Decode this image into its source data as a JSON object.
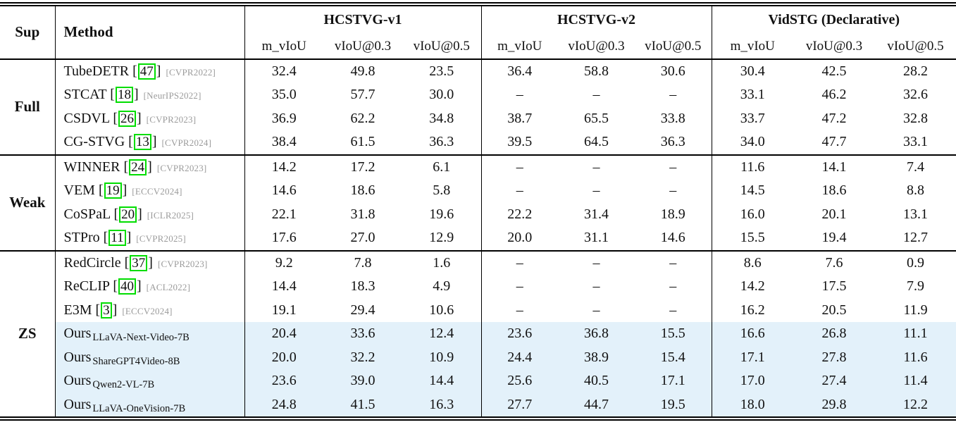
{
  "table": {
    "headers": {
      "sup": "Sup",
      "method": "Method"
    },
    "groups": [
      {
        "label": "HCSTVG-v1",
        "subcols": [
          "m_vIoU",
          "vIoU@0.3",
          "vIoU@0.5"
        ]
      },
      {
        "label": "HCSTVG-v2",
        "subcols": [
          "m_vIoU",
          "vIoU@0.3",
          "vIoU@0.5"
        ]
      },
      {
        "label": "VidSTG (Declarative)",
        "subcols": [
          "m_vIoU",
          "vIoU@0.3",
          "vIoU@0.5"
        ]
      }
    ],
    "sections": [
      {
        "sup": "Full",
        "rows": [
          {
            "method": "TubeDETR",
            "cite": "47",
            "venue": "[CVPR2022]",
            "highlight": false,
            "values": [
              "32.4",
              "49.8",
              "23.5",
              "36.4",
              "58.8",
              "30.6",
              "30.4",
              "42.5",
              "28.2"
            ]
          },
          {
            "method": "STCAT",
            "cite": "18",
            "venue": "[NeurIPS2022]",
            "highlight": false,
            "values": [
              "35.0",
              "57.7",
              "30.0",
              "–",
              "–",
              "–",
              "33.1",
              "46.2",
              "32.6"
            ]
          },
          {
            "method": "CSDVL",
            "cite": "26",
            "venue": "[CVPR2023]",
            "highlight": false,
            "values": [
              "36.9",
              "62.2",
              "34.8",
              "38.7",
              "65.5",
              "33.8",
              "33.7",
              "47.2",
              "32.8"
            ]
          },
          {
            "method": "CG-STVG",
            "cite": "13",
            "venue": "[CVPR2024]",
            "highlight": false,
            "values": [
              "38.4",
              "61.5",
              "36.3",
              "39.5",
              "64.5",
              "36.3",
              "34.0",
              "47.7",
              "33.1"
            ]
          }
        ]
      },
      {
        "sup": "Weak",
        "rows": [
          {
            "method": "WINNER",
            "cite": "24",
            "venue": "[CVPR2023]",
            "highlight": false,
            "values": [
              "14.2",
              "17.2",
              "6.1",
              "–",
              "–",
              "–",
              "11.6",
              "14.1",
              "7.4"
            ]
          },
          {
            "method": "VEM",
            "cite": "19",
            "venue": "[ECCV2024]",
            "highlight": false,
            "values": [
              "14.6",
              "18.6",
              "5.8",
              "–",
              "–",
              "–",
              "14.5",
              "18.6",
              "8.8"
            ]
          },
          {
            "method": "CoSPaL",
            "cite": "20",
            "venue": "[ICLR2025]",
            "highlight": false,
            "values": [
              "22.1",
              "31.8",
              "19.6",
              "22.2",
              "31.4",
              "18.9",
              "16.0",
              "20.1",
              "13.1"
            ]
          },
          {
            "method": "STPro",
            "cite": "11",
            "venue": "[CVPR2025]",
            "highlight": false,
            "values": [
              "17.6",
              "27.0",
              "12.9",
              "20.0",
              "31.1",
              "14.6",
              "15.5",
              "19.4",
              "12.7"
            ]
          }
        ]
      },
      {
        "sup": "ZS",
        "rows": [
          {
            "method": "RedCircle",
            "cite": "37",
            "venue": "[CVPR2023]",
            "highlight": false,
            "values": [
              "9.2",
              "7.8",
              "1.6",
              "–",
              "–",
              "–",
              "8.6",
              "7.6",
              "0.9"
            ]
          },
          {
            "method": "ReCLIP",
            "cite": "40",
            "venue": "[ACL2022]",
            "highlight": false,
            "values": [
              "14.4",
              "18.3",
              "4.9",
              "–",
              "–",
              "–",
              "14.2",
              "17.5",
              "7.9"
            ]
          },
          {
            "method": "E3M",
            "cite": "3",
            "venue": "[ECCV2024]",
            "highlight": false,
            "values": [
              "19.1",
              "29.4",
              "10.6",
              "–",
              "–",
              "–",
              "16.2",
              "20.5",
              "11.9"
            ]
          },
          {
            "method": "Ours",
            "subscript": "LLaVA-Next-Video-7B",
            "highlight": true,
            "values": [
              "20.4",
              "33.6",
              "12.4",
              "23.6",
              "36.8",
              "15.5",
              "16.6",
              "26.8",
              "11.1"
            ]
          },
          {
            "method": "Ours",
            "subscript": "ShareGPT4Video-8B",
            "highlight": true,
            "values": [
              "20.0",
              "32.2",
              "10.9",
              "24.4",
              "38.9",
              "15.4",
              "17.1",
              "27.8",
              "11.6"
            ]
          },
          {
            "method": "Ours",
            "subscript": "Qwen2-VL-7B",
            "highlight": true,
            "values": [
              "23.6",
              "39.0",
              "14.4",
              "25.6",
              "40.5",
              "17.1",
              "17.0",
              "27.4",
              "11.4"
            ]
          },
          {
            "method": "Ours",
            "subscript": "LLaVA-OneVision-7B",
            "highlight": true,
            "values": [
              "24.8",
              "41.5",
              "16.3",
              "27.7",
              "44.7",
              "19.5",
              "18.0",
              "29.8",
              "12.2"
            ]
          }
        ]
      }
    ],
    "colors": {
      "highlight": "#e3f1fa",
      "citation_box": "#00dd00",
      "venue_text": "#9b9b9b"
    },
    "missing_value": "–"
  }
}
